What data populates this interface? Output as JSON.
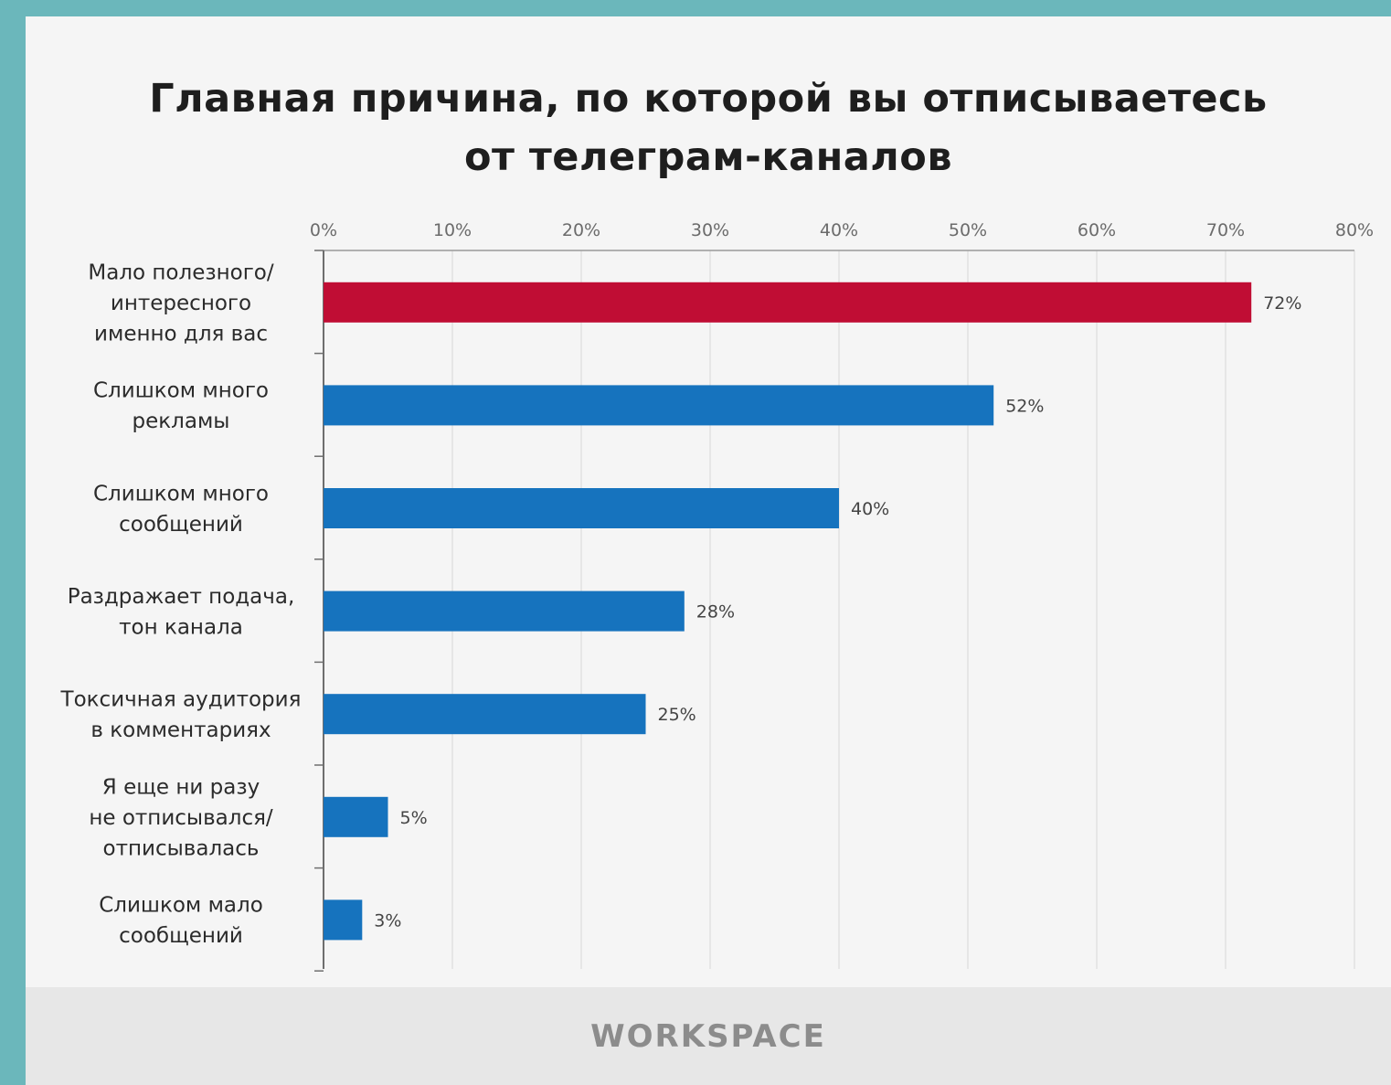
{
  "chart_data": {
    "type": "bar",
    "orientation": "horizontal",
    "title_lines": [
      "Главная причина, по которой вы отписываетесь",
      "от телеграм-каналов"
    ],
    "categories": [
      [
        "Мало полезного/",
        "интересного",
        "именно для вас"
      ],
      [
        "Слишком много",
        "рекламы"
      ],
      [
        "Слишком много",
        "сообщений"
      ],
      [
        "Раздражает подача,",
        "тон канала"
      ],
      [
        "Токсичная аудитория",
        "в комментариях"
      ],
      [
        "Я еще ни разу",
        "не отписывался/",
        "отписывалась"
      ],
      [
        "Слишком мало",
        "сообщений"
      ]
    ],
    "values": [
      72,
      52,
      40,
      28,
      25,
      5,
      3
    ],
    "value_labels": [
      "72%",
      "52%",
      "40%",
      "28%",
      "25%",
      "5%",
      "3%"
    ],
    "xlim": [
      0,
      80
    ],
    "x_ticks": [
      "0%",
      "10%",
      "20%",
      "30%",
      "40%",
      "50%",
      "60%",
      "70%",
      "80%"
    ],
    "x_axis_position": "top",
    "grid": true,
    "colors": {
      "highlight": "#c00d34",
      "default": "#1673be"
    },
    "highlight_index": 0
  },
  "footer": {
    "logo": "WORKSPACE"
  }
}
